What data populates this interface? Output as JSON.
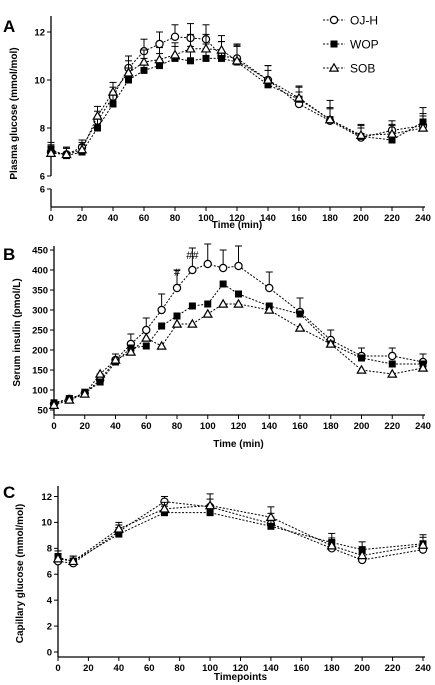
{
  "legend": [
    "OJ-H",
    "WOP",
    "SOB"
  ],
  "chart_data": [
    {
      "panel": "A",
      "type": "line",
      "xlabel": "Time (min)",
      "ylabel": "Plasma glucose (mmol/mol)",
      "xlim": [
        0,
        240
      ],
      "xticks": [
        0,
        20,
        40,
        60,
        80,
        100,
        120,
        140,
        160,
        180,
        200,
        220,
        240
      ],
      "ylim": [
        6,
        12.5
      ],
      "yticks": [
        6,
        8,
        10,
        12
      ],
      "lower_axis_label": "6",
      "x": [
        0,
        10,
        20,
        30,
        40,
        50,
        60,
        70,
        80,
        90,
        100,
        110,
        120,
        140,
        160,
        180,
        200,
        220,
        240
      ],
      "series": [
        {
          "name": "OJ-H",
          "marker": "circle",
          "values": [
            7.0,
            6.9,
            7.2,
            8.3,
            9.3,
            10.5,
            11.2,
            11.5,
            11.8,
            11.75,
            11.7,
            11.0,
            10.9,
            10.0,
            9.0,
            8.3,
            7.6,
            7.9,
            8.1
          ],
          "errors": [
            0.3,
            0.3,
            0.3,
            0.4,
            0.4,
            0.5,
            0.5,
            0.5,
            0.5,
            0.6,
            0.6,
            0.6,
            0.6,
            0.6,
            0.5,
            0.5,
            0.4,
            0.4,
            0.5
          ]
        },
        {
          "name": "WOP",
          "marker": "square",
          "values": [
            7.1,
            6.85,
            7.0,
            8.0,
            9.0,
            10.0,
            10.4,
            10.6,
            10.9,
            10.8,
            10.9,
            10.9,
            10.75,
            9.8,
            9.2,
            8.35,
            7.65,
            7.5,
            8.25
          ],
          "errors": [
            0.3,
            0.3,
            0.3,
            0.4,
            0.5,
            0.5,
            0.5,
            0.5,
            0.5,
            0.6,
            0.6,
            0.7,
            0.7,
            0.6,
            0.5,
            0.8,
            0.5,
            0.6,
            0.6
          ]
        },
        {
          "name": "SOB",
          "marker": "triangle",
          "values": [
            6.95,
            6.9,
            7.1,
            8.5,
            9.5,
            10.3,
            10.75,
            10.85,
            11.05,
            11.3,
            11.3,
            11.25,
            10.8,
            10.0,
            9.25,
            8.35,
            7.7,
            7.75,
            8.0
          ],
          "errors": [
            0.3,
            0.3,
            0.3,
            0.4,
            0.4,
            0.5,
            0.5,
            0.5,
            0.5,
            0.6,
            0.6,
            0.6,
            0.6,
            0.6,
            0.5,
            0.5,
            0.4,
            0.4,
            0.5
          ]
        }
      ]
    },
    {
      "panel": "B",
      "type": "line",
      "xlabel": "Time (min)",
      "ylabel": "Serum insulin (pmol/L)",
      "xlim": [
        0,
        240
      ],
      "xticks": [
        0,
        20,
        40,
        60,
        80,
        100,
        120,
        140,
        160,
        180,
        200,
        220,
        240
      ],
      "ylim": [
        50,
        450
      ],
      "yticks": [
        50,
        100,
        150,
        200,
        250,
        300,
        350,
        400,
        450
      ],
      "annotations": [
        {
          "text": "#",
          "x": 80,
          "y": 385
        },
        {
          "text": "##",
          "x": 90,
          "y": 428
        }
      ],
      "x": [
        0,
        10,
        20,
        30,
        40,
        50,
        60,
        70,
        80,
        90,
        100,
        110,
        120,
        140,
        160,
        180,
        200,
        220,
        240
      ],
      "series": [
        {
          "name": "OJ-H",
          "marker": "circle",
          "values": [
            65,
            78,
            92,
            125,
            175,
            215,
            250,
            300,
            355,
            400,
            415,
            405,
            410,
            355,
            295,
            225,
            185,
            185,
            170
          ],
          "errors": [
            8,
            8,
            10,
            15,
            15,
            25,
            30,
            40,
            45,
            55,
            50,
            45,
            50,
            40,
            35,
            25,
            20,
            20,
            20
          ]
        },
        {
          "name": "WOP",
          "marker": "square",
          "values": [
            68,
            78,
            92,
            120,
            170,
            205,
            210,
            260,
            285,
            310,
            315,
            365,
            340,
            310,
            290,
            215,
            180,
            165,
            165
          ]
        },
        {
          "name": "SOB",
          "marker": "triangle",
          "values": [
            62,
            75,
            90,
            140,
            175,
            195,
            230,
            210,
            265,
            265,
            290,
            315,
            315,
            300,
            255,
            215,
            150,
            140,
            155
          ]
        }
      ]
    },
    {
      "panel": "C",
      "type": "line",
      "xlabel": "Timepoints",
      "ylabel": "Capillary glucose (mmol/mol)",
      "xlim": [
        0,
        240
      ],
      "xticks": [
        0,
        20,
        40,
        60,
        80,
        100,
        120,
        140,
        160,
        180,
        200,
        220,
        240
      ],
      "ylim": [
        0,
        12.5
      ],
      "yticks": [
        0,
        2,
        4,
        6,
        8,
        10,
        12
      ],
      "x": [
        0,
        10,
        40,
        70,
        100,
        140,
        180,
        200,
        240
      ],
      "series": [
        {
          "name": "OJ-H",
          "marker": "circle",
          "values": [
            7.0,
            6.85,
            9.3,
            11.6,
            11.2,
            9.9,
            8.0,
            7.1,
            7.9
          ],
          "errors": [
            0.4,
            0.4,
            0.5,
            0.4,
            0.6,
            0.8,
            0.6,
            0.5,
            0.6
          ]
        },
        {
          "name": "WOP",
          "marker": "square",
          "values": [
            7.3,
            7.0,
            9.1,
            10.75,
            10.75,
            9.7,
            8.45,
            7.9,
            8.35
          ],
          "errors": [
            0.5,
            0.4,
            0.5,
            0.5,
            0.6,
            0.7,
            0.7,
            0.6,
            0.7
          ]
        },
        {
          "name": "SOB",
          "marker": "triangle",
          "values": [
            7.2,
            7.0,
            9.5,
            11.05,
            11.3,
            10.4,
            8.2,
            7.45,
            8.25
          ],
          "errors": [
            0.4,
            0.4,
            0.5,
            0.5,
            0.9,
            0.8,
            0.6,
            0.5,
            0.6
          ]
        }
      ]
    }
  ]
}
